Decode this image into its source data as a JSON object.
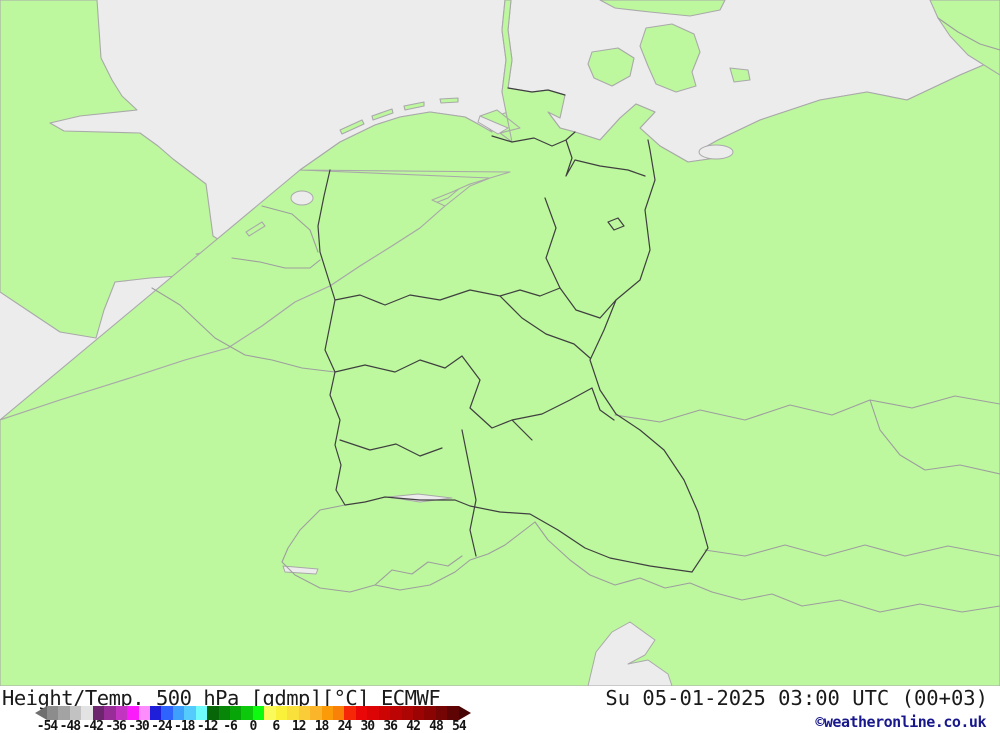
{
  "map": {
    "region_label": "central-europe-germany",
    "colors": {
      "sea": "#ececec",
      "land": "#bdf89e",
      "coast": "#a9a9a9",
      "country_border": "#9e9e9e",
      "state_border": "#3f3f3f"
    }
  },
  "footer": {
    "title": "Height/Temp. 500 hPa [gdmp][°C] ECMWF",
    "datetime": "Su 05-01-2025 03:00 UTC (00+03)",
    "copyright": "©weatheronline.co.uk",
    "copyright_color": "#18188c",
    "text_color": "#1a1a1a"
  },
  "colorbar": {
    "unit": "°C",
    "tick_labels": [
      "-54",
      "-48",
      "-42",
      "-36",
      "-30",
      "-24",
      "-18",
      "-12",
      "-6",
      "0",
      "6",
      "12",
      "18",
      "24",
      "30",
      "36",
      "42",
      "48",
      "54"
    ],
    "left_arrow_color": "#6f6f6f",
    "right_arrow_color": "#470404",
    "cell_colors": [
      "#8c8c8c",
      "#a3a3a3",
      "#c2c2c2",
      "#e3e3e3",
      "#6d266d",
      "#982d98",
      "#c135c1",
      "#fa1cfa",
      "#fd8dfd",
      "#1f1fd9",
      "#2f63fd",
      "#3f9ffd",
      "#55cbfd",
      "#70fafa",
      "#076607",
      "#078607",
      "#07a507",
      "#0cc90c",
      "#0efa0e",
      "#fafa5a",
      "#faf13a",
      "#fae03a",
      "#facd38",
      "#fab52a",
      "#fa9b07",
      "#fa8107",
      "#f52707",
      "#ea0707",
      "#dc0404",
      "#cd0404",
      "#bd0404",
      "#ad0404",
      "#9c0404",
      "#8a0404",
      "#750404",
      "#5e0404"
    ]
  }
}
